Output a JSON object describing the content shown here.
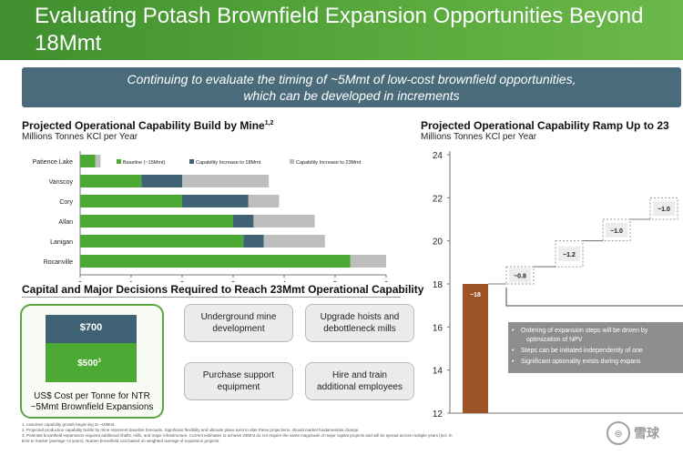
{
  "header": {
    "title": "Evaluating Potash Brownfield Expansion Opportunities Beyond\n18Mmt"
  },
  "banner": {
    "text": "Continuing to evaluate the timing of ~5Mmt of low-cost brownfield opportunities,\nwhich can be developed in increments"
  },
  "colors": {
    "baseline": "#4caa34",
    "increase18": "#3f6275",
    "increase23": "#bdbdbd",
    "start_bar": "#9b5326",
    "step_box": "#ececec",
    "note_box": "#8e8e8e"
  },
  "left_chart": {
    "title": "Projected Operational Capability Build by Mine",
    "title_sup": "1,2",
    "subtitle": "Millions Tonnes KCl per Year",
    "legend": [
      "Baseline (~15Mmt)",
      "Capability Increase to 18Mmt",
      "Capability Increase to 23Mmt"
    ]
  },
  "right_chart": {
    "title": "Projected Operational Capability Ramp Up to 23",
    "subtitle": "Millions Tonnes KCl per Year",
    "notes": [
      "Ordering of expansion steps will be driven by",
      "optimization of NPV",
      "Steps can be initiated independently of one",
      "Significant optionality exists during expans"
    ]
  },
  "chart_data": [
    {
      "type": "bar",
      "orientation": "horizontal",
      "stacked": true,
      "categories": [
        "Patience Lake",
        "Vanscoy",
        "Cory",
        "Allan",
        "Lanigan",
        "Rocanville"
      ],
      "series": [
        {
          "name": "Baseline (~15Mmt)",
          "values": [
            0.3,
            1.2,
            2.0,
            3.0,
            3.2,
            5.3
          ]
        },
        {
          "name": "Capability Increase to 18Mmt",
          "values": [
            0.0,
            0.8,
            1.3,
            0.4,
            0.4,
            0.0
          ]
        },
        {
          "name": "Capability Increase to 23Mmt",
          "values": [
            0.1,
            1.7,
            0.6,
            1.2,
            1.2,
            0.7
          ]
        }
      ],
      "xlim": [
        0,
        6
      ],
      "xticks": [
        0,
        1,
        2,
        3,
        4,
        5,
        6
      ],
      "title": "Projected Operational Capability Build by Mine",
      "xlabel": "",
      "ylabel": "",
      "grid": false,
      "legend": "top"
    },
    {
      "type": "bar",
      "subtype": "waterfall",
      "start": {
        "label": "~18",
        "value": 18
      },
      "steps": [
        {
          "label": "~0.8",
          "value": 0.8
        },
        {
          "label": "~1.2",
          "value": 1.2
        },
        {
          "label": "~1.0",
          "value": 1.0
        },
        {
          "label": "~1.0",
          "value": 1.0
        }
      ],
      "ylim": [
        12,
        24
      ],
      "yticks": [
        12,
        14,
        16,
        18,
        20,
        22,
        24
      ],
      "title": "Projected Operational Capability Ramp Up to 23",
      "grid": false
    }
  ],
  "capital_section": {
    "title": "Capital and Major Decisions Required to Reach 23Mmt Operational Capability",
    "cost_box": {
      "total_label": "$700",
      "inner_label": "$500",
      "inner_sup": "3",
      "total_value": 700,
      "inner_value": 500,
      "caption": "US$ Cost per Tonne for NTR\n~5Mmt Brownfield Expansions"
    },
    "decisions": [
      "Underground mine\ndevelopment",
      "Upgrade hoists and\ndebottleneck mills",
      "Purchase support\nequipment",
      "Hire and train\nadditional employees"
    ]
  },
  "footnotes": [
    "1.    Assumes capability growth beginning at ~18Mmt.",
    "2.    Projected production capability builds by mine represent baseline forecasts. Significant flexibility and ultimate plans exist to alter these projections, should market fundamentals change.",
    "3.    Potential brownfield expansions required additional shafts, mills, and major infrastructure. Current estimates to achieve 23Mmt do not require the same magnitude of major capital projects and will be spread across multiple years (incl. in",
    "       time to market (average <4 years). Nutrien brownfield cost based on weighted average of expansion projects."
  ],
  "watermark": {
    "text": "雪球"
  }
}
